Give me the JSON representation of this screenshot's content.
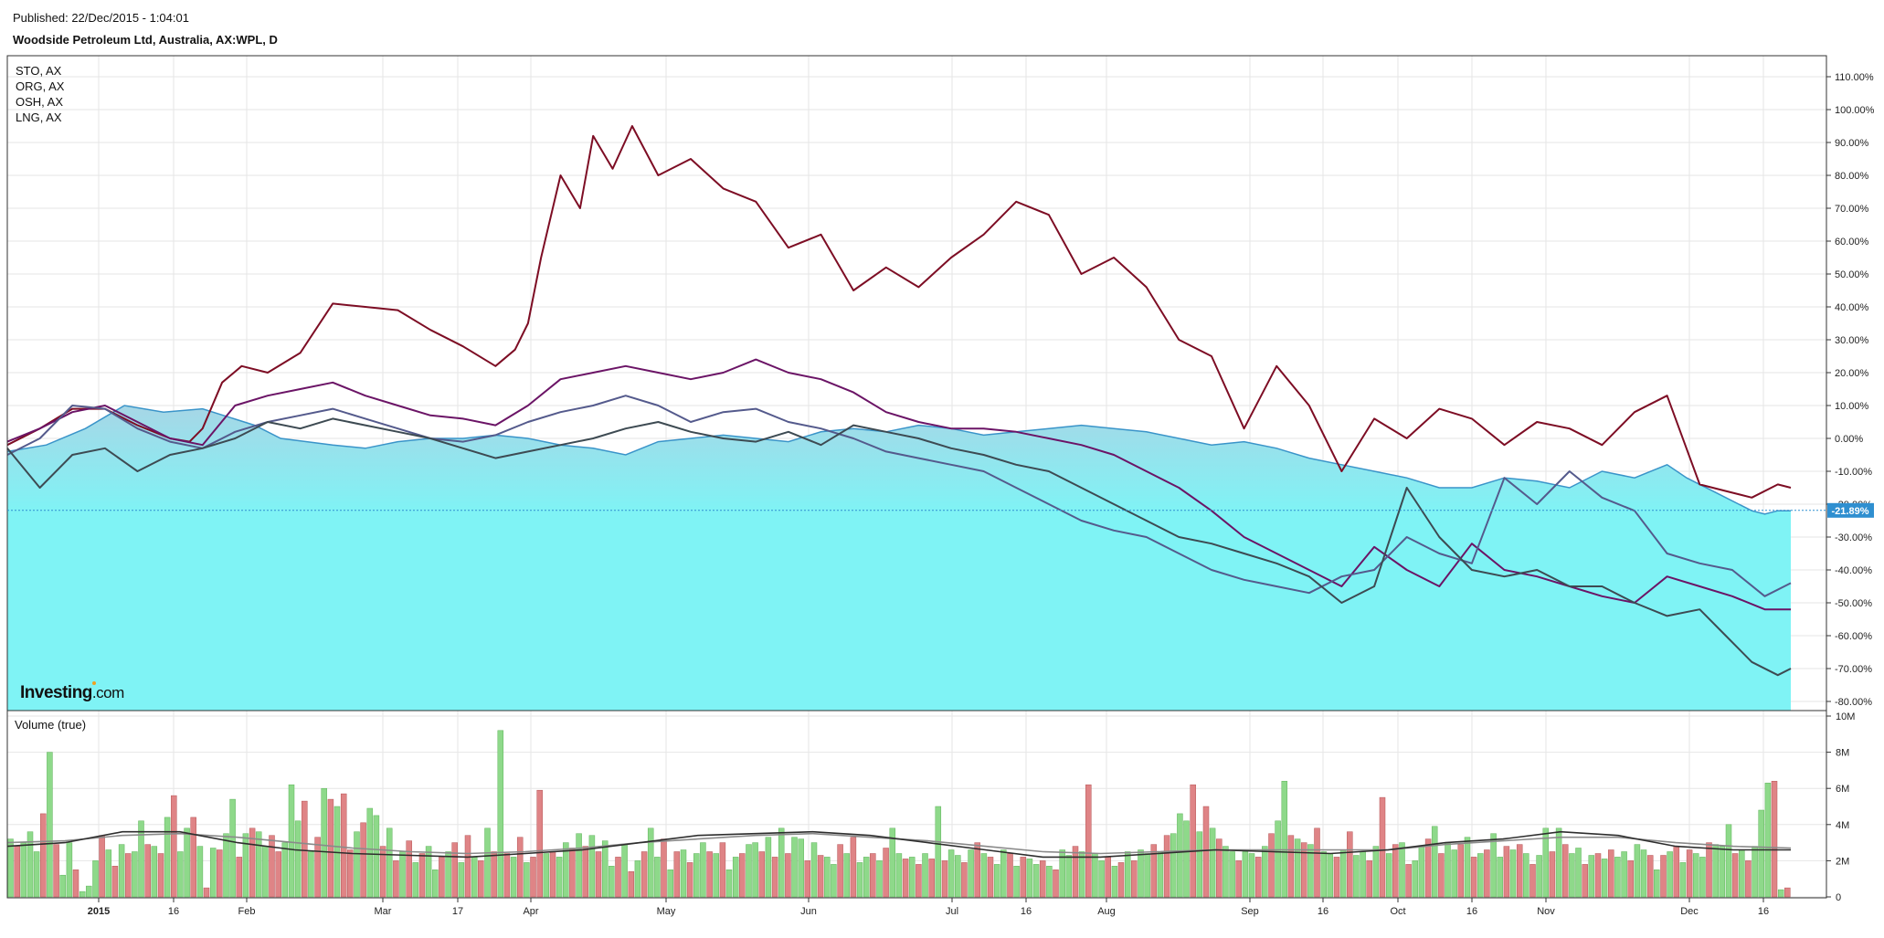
{
  "header": {
    "published": "Published: 22/Dec/2015 - 1:04:01",
    "title": "Woodside Petroleum Ltd, Australia, AX:WPL, D"
  },
  "branding": {
    "logo_main": "Investing",
    "logo_suffix": ".com"
  },
  "chart_data": [
    {
      "type": "area",
      "legend": [
        "STO, AX",
        "ORG, AX",
        "OSH, AX",
        "LNG, AX"
      ],
      "legend_placement": "top-left",
      "y_axis_side": "right",
      "y_unit": "%",
      "ylim": [
        -83,
        114
      ],
      "yticks": [
        110,
        100,
        90,
        80,
        70,
        60,
        50,
        40,
        30,
        20,
        10,
        0,
        -10,
        -20,
        -30,
        -40,
        -50,
        -60,
        -70,
        -80
      ],
      "ytick_labels": [
        "110.00%",
        "100.00%",
        "90.00%",
        "80.00%",
        "70.00%",
        "60.00%",
        "50.00%",
        "40.00%",
        "30.00%",
        "20.00%",
        "10.00%",
        "0.00%",
        "-10.00%",
        "-20.00%",
        "-30.00%",
        "-40.00%",
        "-50.00%",
        "-60.00%",
        "-70.00%",
        "-80.00%"
      ],
      "xticks": [
        "2015",
        "16",
        "Feb",
        "Mar",
        "17",
        "Apr",
        "May",
        "Jun",
        "Jul",
        "16",
        "Aug",
        "Sep",
        "16",
        "Oct",
        "16",
        "Nov",
        "Dec",
        "16"
      ],
      "current_value_label": "-21.89%",
      "current_value": -21.89,
      "grid": true,
      "colors": {
        "main_area_fill": "#7ff3f5",
        "main_area_top": "#a7d6e6",
        "main_line": "#3a94c9",
        "series": [
          "#7d0d24",
          "#6b1466",
          "#545a8c",
          "#3d4a52"
        ]
      },
      "main_series": {
        "x": [
          0,
          6,
          12,
          18,
          24,
          30,
          38,
          42,
          46,
          50,
          55,
          60,
          65,
          70,
          75,
          80,
          85,
          90,
          95,
          100,
          105,
          110,
          115,
          120,
          125,
          130,
          135,
          140,
          145,
          150,
          155,
          160,
          165,
          170,
          175,
          180,
          185,
          190,
          195,
          200,
          205,
          210,
          215,
          220,
          225,
          230,
          235,
          240,
          245,
          250,
          255,
          258,
          260,
          262,
          264,
          266,
          268,
          270,
          272,
          274
        ],
        "y": [
          -4,
          -2,
          3,
          10,
          8,
          9,
          4,
          0,
          -1,
          -2,
          -3,
          -1,
          0,
          0,
          1,
          0,
          -2,
          -3,
          -5,
          -1,
          0,
          1,
          0,
          -1,
          2,
          3,
          2,
          4,
          3,
          1,
          2,
          3,
          4,
          3,
          2,
          0,
          -2,
          -1,
          -3,
          -6,
          -8,
          -10,
          -12,
          -15,
          -15,
          -12,
          -13,
          -15,
          -10,
          -12,
          -8,
          -12,
          -14,
          -16,
          -18,
          -20,
          -22,
          -23,
          -22,
          -22
        ]
      },
      "series": [
        {
          "x": [
            0,
            5,
            10,
            15,
            20,
            25,
            28,
            30,
            33,
            36,
            40,
            45,
            50,
            55,
            60,
            65,
            70,
            75,
            78,
            80,
            82,
            85,
            88,
            90,
            93,
            96,
            100,
            105,
            110,
            115,
            120,
            125,
            130,
            135,
            140,
            145,
            150,
            155,
            160,
            165,
            170,
            175,
            180,
            185,
            190,
            195,
            200,
            205,
            210,
            215,
            220,
            225,
            230,
            235,
            240,
            245,
            250,
            255,
            260,
            264,
            268,
            272,
            274
          ],
          "y": [
            -2,
            3,
            9,
            9,
            4,
            0,
            -1,
            3,
            17,
            22,
            20,
            26,
            41,
            40,
            39,
            33,
            28,
            22,
            27,
            35,
            55,
            80,
            70,
            92,
            82,
            95,
            80,
            85,
            76,
            72,
            58,
            62,
            45,
            52,
            46,
            55,
            62,
            72,
            68,
            50,
            55,
            46,
            30,
            25,
            3,
            22,
            10,
            -10,
            6,
            0,
            9,
            6,
            -2,
            5,
            3,
            -2,
            8,
            13,
            -14,
            -16,
            -18,
            -14,
            -15
          ]
        },
        {
          "x": [
            0,
            5,
            10,
            15,
            20,
            25,
            30,
            35,
            40,
            45,
            50,
            55,
            60,
            65,
            70,
            75,
            80,
            85,
            90,
            95,
            100,
            105,
            110,
            115,
            120,
            125,
            130,
            135,
            140,
            145,
            150,
            155,
            160,
            165,
            170,
            175,
            180,
            185,
            190,
            195,
            200,
            205,
            210,
            215,
            220,
            225,
            230,
            235,
            240,
            245,
            250,
            255,
            260,
            265,
            270,
            274
          ],
          "y": [
            -1,
            3,
            8,
            10,
            5,
            0,
            -2,
            10,
            13,
            15,
            17,
            13,
            10,
            7,
            6,
            4,
            10,
            18,
            20,
            22,
            20,
            18,
            20,
            24,
            20,
            18,
            14,
            8,
            5,
            3,
            3,
            2,
            0,
            -2,
            -5,
            -10,
            -15,
            -22,
            -30,
            -35,
            -40,
            -45,
            -33,
            -40,
            -45,
            -32,
            -40,
            -42,
            -45,
            -48,
            -50,
            -42,
            -45,
            -48,
            -52,
            -52
          ]
        },
        {
          "x": [
            0,
            5,
            10,
            15,
            20,
            25,
            30,
            35,
            40,
            45,
            50,
            55,
            60,
            65,
            70,
            75,
            80,
            85,
            90,
            95,
            100,
            105,
            110,
            115,
            120,
            125,
            130,
            135,
            140,
            145,
            150,
            155,
            160,
            165,
            170,
            175,
            180,
            185,
            190,
            195,
            200,
            205,
            210,
            215,
            220,
            225,
            230,
            235,
            240,
            245,
            250,
            255,
            260,
            265,
            270,
            274
          ],
          "y": [
            -5,
            0,
            10,
            9,
            3,
            -1,
            -3,
            2,
            5,
            7,
            9,
            6,
            3,
            0,
            -1,
            1,
            5,
            8,
            10,
            13,
            10,
            5,
            8,
            9,
            5,
            3,
            0,
            -4,
            -6,
            -8,
            -10,
            -15,
            -20,
            -25,
            -28,
            -30,
            -35,
            -40,
            -43,
            -45,
            -47,
            -42,
            -40,
            -30,
            -35,
            -38,
            -12,
            -20,
            -10,
            -18,
            -22,
            -35,
            -38,
            -40,
            -48,
            -44
          ]
        },
        {
          "x": [
            0,
            5,
            10,
            15,
            20,
            25,
            30,
            35,
            40,
            45,
            50,
            55,
            60,
            65,
            70,
            75,
            80,
            85,
            90,
            95,
            100,
            105,
            110,
            115,
            120,
            125,
            130,
            135,
            140,
            145,
            150,
            155,
            160,
            165,
            170,
            175,
            180,
            185,
            190,
            195,
            200,
            205,
            210,
            215,
            220,
            225,
            230,
            235,
            240,
            245,
            250,
            255,
            260,
            264,
            268,
            272,
            274
          ],
          "y": [
            -3,
            -15,
            -5,
            -3,
            -10,
            -5,
            -3,
            0,
            5,
            3,
            6,
            4,
            2,
            0,
            -3,
            -6,
            -4,
            -2,
            0,
            3,
            5,
            2,
            0,
            -1,
            2,
            -2,
            4,
            2,
            0,
            -3,
            -5,
            -8,
            -10,
            -15,
            -20,
            -25,
            -30,
            -32,
            -35,
            -38,
            -42,
            -50,
            -45,
            -15,
            -30,
            -40,
            -42,
            -40,
            -45,
            -45,
            -50,
            -54,
            -52,
            -60,
            -68,
            -72,
            -70
          ]
        }
      ]
    },
    {
      "type": "bar",
      "title": "Volume (true)",
      "y_axis_side": "right",
      "ylim": [
        0,
        10000000
      ],
      "yticks": [
        0,
        2000000,
        4000000,
        6000000,
        8000000,
        10000000
      ],
      "ytick_labels": [
        "0",
        "2M",
        "4M",
        "6M",
        "8M",
        "10M"
      ],
      "colors": {
        "up": "#8ed98a",
        "down": "#df8486",
        "moving_average": "#2e2e2e",
        "moving_average_2": "#8a8a8a"
      },
      "values_millions": [
        3.2,
        2.8,
        3.0,
        3.6,
        2.5,
        4.6,
        8.0,
        2.9,
        1.2,
        3.0,
        1.5,
        0.3,
        0.6,
        2.0,
        3.4,
        2.6,
        1.7,
        2.9,
        2.4,
        2.5,
        4.2,
        2.9,
        2.8,
        2.4,
        4.4,
        5.6,
        2.5,
        3.8,
        4.4,
        2.8,
        0.5,
        2.7,
        2.6,
        3.5,
        5.4,
        2.2,
        3.5,
        3.8,
        3.6,
        2.8,
        3.4,
        2.5,
        3.0,
        6.2,
        4.2,
        5.3,
        2.5,
        3.3,
        6.0,
        5.4,
        5.0,
        5.7,
        2.6,
        3.6,
        4.1,
        4.9,
        4.5,
        2.8,
        3.8,
        2.0,
        2.5,
        3.1,
        1.9,
        2.4,
        2.8,
        1.5,
        2.2,
        2.5,
        3.0,
        1.9,
        3.4,
        2.2,
        2.0,
        3.8,
        2.5,
        9.2,
        2.4,
        2.2,
        3.3,
        1.9,
        2.2,
        5.9,
        2.4,
        2.5,
        2.2,
        3.0,
        2.7,
        3.5,
        2.8,
        3.4,
        2.5,
        3.1,
        1.7,
        2.2,
        2.9,
        1.4,
        2.0,
        2.5,
        3.8,
        2.2,
        3.2,
        1.5,
        2.5,
        2.6,
        1.9,
        2.4,
        3.0,
        2.5,
        2.4,
        3.0,
        1.5,
        2.2,
        2.4,
        2.9,
        3.0,
        2.5,
        3.3,
        2.2,
        3.8,
        2.4,
        3.3,
        3.2,
        2.0,
        3.0,
        2.3,
        2.2,
        1.8,
        2.9,
        2.4,
        3.3,
        1.9,
        2.2,
        2.4,
        2.0,
        2.7,
        3.8,
        2.4,
        2.1,
        2.2,
        1.8,
        2.4,
        2.1,
        5.0,
        2.0,
        2.6,
        2.3,
        1.9,
        2.6,
        3.0,
        2.4,
        2.2,
        1.8,
        2.6,
        2.4,
        1.7,
        2.2,
        2.1,
        1.8,
        2.0,
        1.7,
        1.5,
        2.6,
        2.3,
        2.8,
        2.5,
        6.2,
        2.4,
        2.0,
        2.2,
        1.7,
        1.9,
        2.5,
        2.0,
        2.6,
        2.4,
        2.9,
        2.5,
        3.4,
        3.5,
        4.6,
        4.2,
        6.2,
        3.6,
        5.0,
        3.8,
        3.2,
        2.8,
        2.5,
        2.0,
        2.5,
        2.4,
        2.2,
        2.8,
        3.5,
        4.2,
        6.4,
        3.4,
        3.2,
        3.0,
        2.9,
        3.8,
        2.5,
        2.4,
        2.2,
        2.6,
        3.6,
        2.3,
        2.5,
        2.0,
        2.8,
        5.5,
        2.4,
        2.9,
        3.0,
        1.8,
        2.0,
        2.8,
        3.2,
        3.9,
        2.4,
        3.0,
        2.6,
        2.9,
        3.3,
        2.2,
        2.4,
        2.6,
        3.5,
        2.2,
        2.8,
        2.6,
        2.9,
        2.4,
        1.8,
        2.3,
        3.8,
        2.5,
        3.8,
        2.9,
        2.4,
        2.7,
        1.8,
        2.3,
        2.4,
        2.1,
        2.6,
        2.2,
        2.5,
        2.0,
        2.9,
        2.6,
        2.3,
        1.5,
        2.3,
        2.5,
        2.8,
        1.9,
        2.6,
        2.4,
        2.2,
        3.0,
        2.9,
        2.8,
        4.0,
        2.4,
        2.6,
        2.0,
        2.8,
        4.8,
        6.3,
        6.4,
        0.4,
        0.5
      ],
      "up_flags": [
        1,
        0,
        1,
        1,
        1,
        0,
        1,
        0,
        1,
        1,
        0,
        1,
        1,
        1,
        0,
        1,
        0,
        1,
        0,
        1,
        1,
        0,
        1,
        0,
        1,
        0,
        1,
        1,
        0,
        1,
        0,
        1,
        0,
        1,
        1,
        0,
        1,
        0,
        1,
        1,
        0,
        0,
        1,
        1,
        1,
        0,
        1,
        0,
        1,
        0,
        1,
        0,
        0,
        1,
        0,
        1,
        1,
        0,
        1,
        0,
        1,
        0,
        1,
        0,
        1,
        1,
        0,
        1,
        0,
        1,
        0,
        1,
        0,
        1,
        0,
        1,
        0,
        1,
        0,
        1,
        0,
        0,
        1,
        0,
        1,
        1,
        0,
        1,
        0,
        1,
        0,
        1,
        1,
        0,
        1,
        0,
        1,
        0,
        1,
        1,
        0,
        1,
        0,
        1,
        0,
        1,
        1,
        0,
        1,
        0,
        1,
        1,
        0,
        1,
        1,
        0,
        1,
        0,
        1,
        0,
        1,
        1,
        0,
        1,
        0,
        1,
        1,
        0,
        1,
        0,
        1,
        1,
        0,
        1,
        0,
        1,
        1,
        0,
        1,
        0,
        1,
        0,
        1,
        0,
        1,
        1,
        0,
        1,
        0,
        1,
        0,
        1,
        1,
        0,
        1,
        0,
        1,
        1,
        0,
        1,
        0,
        1,
        1,
        0,
        1,
        0,
        1,
        1,
        0,
        1,
        0,
        1,
        0,
        1,
        1,
        0,
        1,
        0,
        1,
        1,
        1,
        0,
        1,
        0,
        1,
        0,
        1,
        1,
        0,
        1,
        1,
        0,
        1,
        0,
        1,
        1,
        0,
        1,
        0,
        1,
        0,
        1,
        1,
        0,
        1,
        0,
        1,
        1,
        0,
        1,
        0,
        1,
        0,
        1,
        0,
        1,
        1,
        0,
        1,
        0,
        1,
        1,
        0,
        1,
        0,
        1,
        0,
        1,
        1,
        0,
        1,
        0,
        1,
        0,
        1,
        1,
        0,
        1,
        0,
        1,
        1,
        0,
        1,
        0,
        1,
        0,
        1,
        1,
        0,
        1,
        1,
        0,
        1,
        0,
        1,
        0,
        1,
        0,
        1,
        1,
        0,
        1,
        1,
        1,
        0,
        1,
        0,
        1,
        1,
        1,
        0,
        1,
        0,
        1,
        1,
        0
      ],
      "moving_average_millions": [
        2.8,
        3.0,
        3.6,
        3.6,
        3.0,
        2.6,
        2.4,
        2.3,
        2.2,
        2.4,
        2.6,
        3.0,
        3.4,
        3.5,
        3.6,
        3.4,
        3.0,
        2.6,
        2.2,
        2.2,
        2.4,
        2.6,
        2.5,
        2.4,
        2.6,
        3.0,
        3.2,
        3.6,
        3.4,
        2.8,
        2.6,
        2.6
      ],
      "moving_average_2_millions": [
        3.0,
        3.1,
        3.4,
        3.5,
        3.3,
        3.0,
        2.7,
        2.5,
        2.4,
        2.5,
        2.7,
        3.0,
        3.2,
        3.4,
        3.5,
        3.3,
        3.1,
        2.8,
        2.5,
        2.4,
        2.5,
        2.6,
        2.6,
        2.6,
        2.6,
        2.9,
        3.1,
        3.3,
        3.3,
        3.0,
        2.8,
        2.7
      ]
    }
  ]
}
